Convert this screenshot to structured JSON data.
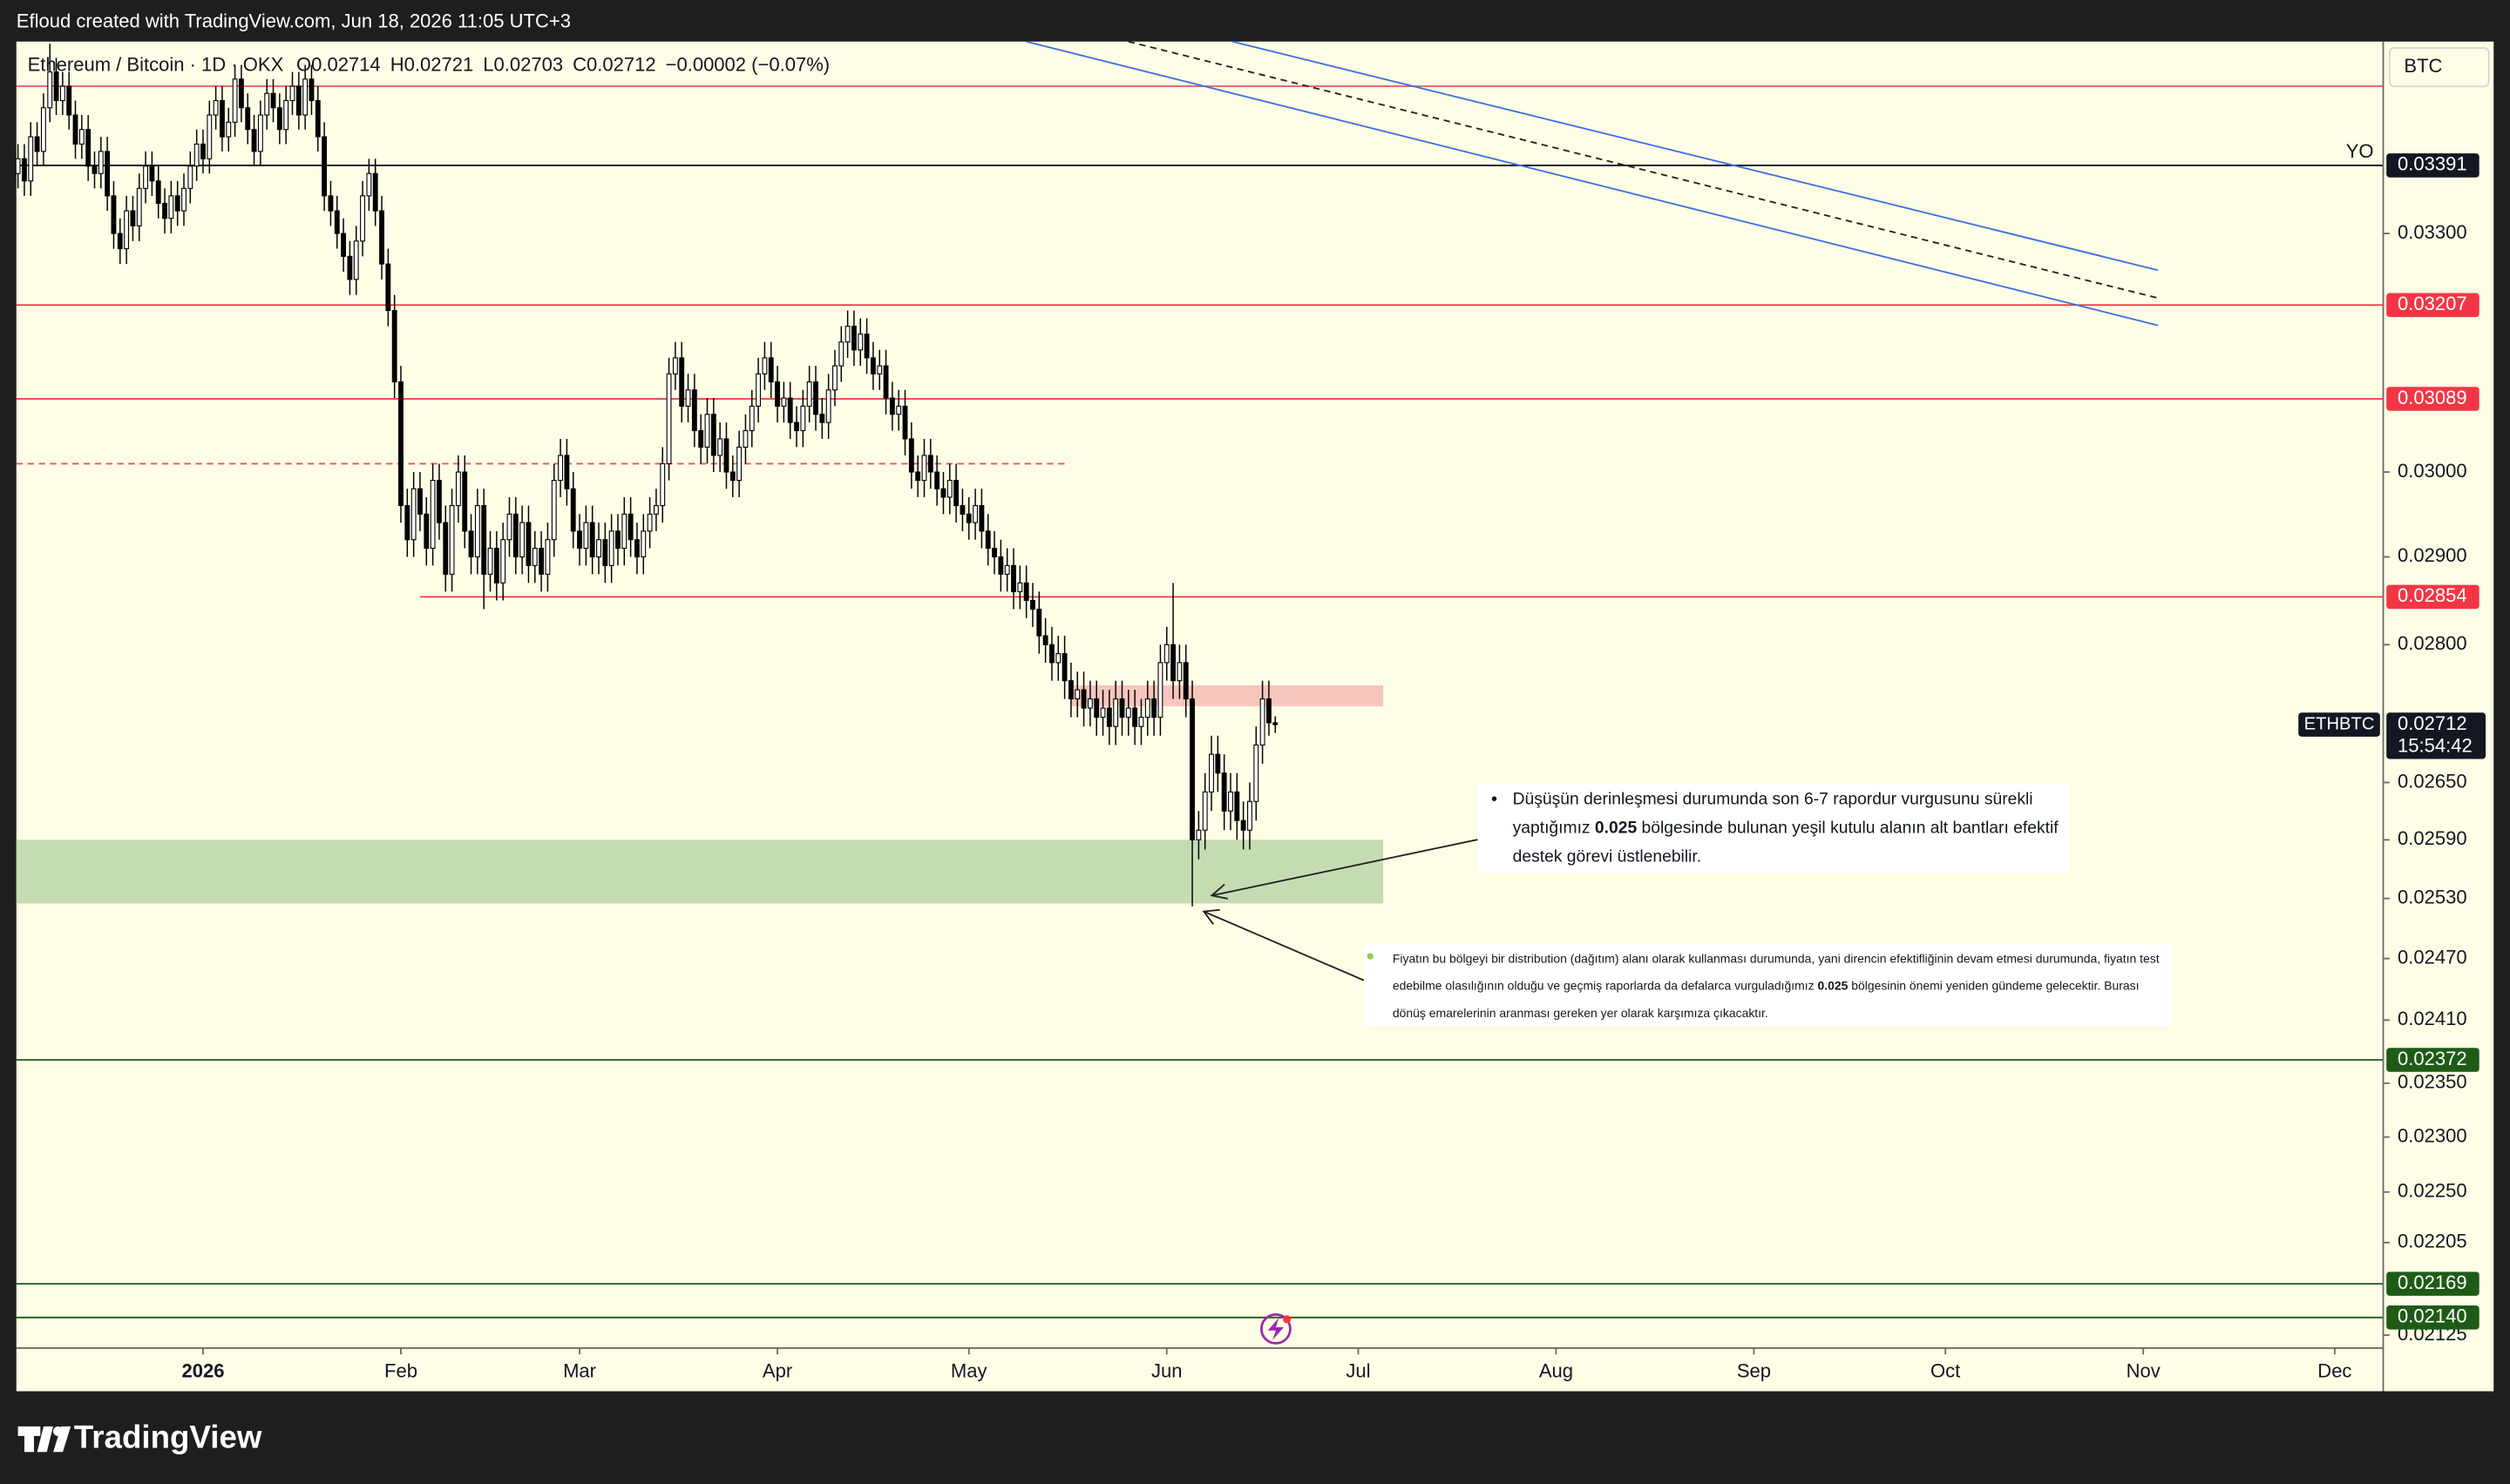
{
  "watermark": "Efloud created with TradingView.com, Jun 18, 2026 11:05 UTC+3",
  "brand": "TradingView",
  "chart_data": {
    "type": "candlestick",
    "header": {
      "symbol": "Ethereum / Bitcoin · 1D · OKX",
      "open_prefix": "O",
      "high_prefix": "H",
      "low_prefix": "L",
      "close_prefix": "C",
      "change": "−0.00002 (−0.07%)"
    },
    "currency": "BTC",
    "symbol_tag": "ETHBTC",
    "countdown": "15:54:42",
    "log_scale": true,
    "grid": false,
    "up_color": "#ffffff",
    "down_color": "#000000",
    "wick_color": "#000000",
    "xlim": [
      -0.25,
      370.6
    ],
    "xticks": [
      {
        "value": 29,
        "label": "2026"
      },
      {
        "value": 60,
        "label": "Feb"
      },
      {
        "value": 88,
        "label": "Mar"
      },
      {
        "value": 119,
        "label": "Apr"
      },
      {
        "value": 149,
        "label": "May"
      },
      {
        "value": 180,
        "label": "Jun"
      },
      {
        "value": 210,
        "label": "Jul"
      },
      {
        "value": 241,
        "label": "Aug"
      },
      {
        "value": 272,
        "label": "Sep"
      },
      {
        "value": 302,
        "label": "Oct"
      },
      {
        "value": 333,
        "label": "Nov"
      },
      {
        "value": 363,
        "label": "Dec"
      }
    ],
    "ylim": [
      0.02114,
      0.03563
    ],
    "yticks": [
      {
        "value": 0.033,
        "label": "0.03300"
      },
      {
        "value": 0.03,
        "label": "0.03000"
      },
      {
        "value": 0.029,
        "label": "0.02900"
      },
      {
        "value": 0.028,
        "label": "0.02800"
      },
      {
        "value": 0.0265,
        "label": "0.02650"
      },
      {
        "value": 0.0259,
        "label": "0.02590"
      },
      {
        "value": 0.0253,
        "label": "0.02530"
      },
      {
        "value": 0.0247,
        "label": "0.02470"
      },
      {
        "value": 0.0241,
        "label": "0.02410"
      },
      {
        "value": 0.0235,
        "label": "0.02350"
      },
      {
        "value": 0.023,
        "label": "0.02300"
      },
      {
        "value": 0.0225,
        "label": "0.02250"
      },
      0.02205,
      0.02125
    ],
    "open": [
      0.0338,
      0.034,
      0.0337,
      0.0343,
      0.0341,
      0.0347,
      0.0352,
      0.0348,
      0.035,
      0.0346,
      0.0342,
      0.0344,
      0.0339,
      0.0338,
      0.0341,
      0.0335,
      0.033,
      0.0328,
      0.0333,
      0.0331,
      0.0336,
      0.0339,
      0.0337,
      0.0334,
      0.0332,
      0.0335,
      0.0333,
      0.0336,
      0.0339,
      0.0342,
      0.034,
      0.0346,
      0.0348,
      0.0343,
      0.0345,
      0.0351,
      0.0347,
      0.0344,
      0.0341,
      0.0346,
      0.0349,
      0.0347,
      0.0344,
      0.0348,
      0.035,
      0.0346,
      0.0351,
      0.0348,
      0.0343,
      0.0335,
      0.0333,
      0.033,
      0.0327,
      0.0324,
      0.0329,
      0.0335,
      0.0338,
      0.0333,
      0.0326,
      0.032,
      0.0311,
      0.0296,
      0.0292,
      0.0298,
      0.0295,
      0.0291,
      0.0299,
      0.0294,
      0.0288,
      0.0296,
      0.03,
      0.0293,
      0.029,
      0.0296,
      0.0288,
      0.0291,
      0.0287,
      0.0292,
      0.0295,
      0.029,
      0.0294,
      0.0289,
      0.0291,
      0.0288,
      0.0292,
      0.0299,
      0.0302,
      0.0298,
      0.0293,
      0.0291,
      0.0294,
      0.029,
      0.0292,
      0.0289,
      0.0293,
      0.0291,
      0.0295,
      0.0292,
      0.029,
      0.0293,
      0.0295,
      0.0296,
      0.0301,
      0.0312,
      0.0314,
      0.0308,
      0.031,
      0.0305,
      0.0303,
      0.0307,
      0.0302,
      0.0304,
      0.03,
      0.0299,
      0.0303,
      0.0305,
      0.0308,
      0.0312,
      0.0314,
      0.0311,
      0.0308,
      0.0309,
      0.0306,
      0.0305,
      0.0308,
      0.0311,
      0.0307,
      0.0306,
      0.031,
      0.0313,
      0.0316,
      0.0318,
      0.0315,
      0.0317,
      0.0314,
      0.0312,
      0.0313,
      0.0309,
      0.0307,
      0.0308,
      0.0304,
      0.03,
      0.0299,
      0.0302,
      0.03,
      0.0298,
      0.0297,
      0.0299,
      0.0296,
      0.0295,
      0.0294,
      0.0296,
      0.0293,
      0.0291,
      0.029,
      0.0288,
      0.0289,
      0.0286,
      0.0287,
      0.0285,
      0.0284,
      0.0281,
      0.028,
      0.0278,
      0.0279,
      0.0276,
      0.0274,
      0.0275,
      0.0273,
      0.0274,
      0.0272,
      0.0273,
      0.0271,
      0.0274,
      0.0272,
      0.0273,
      0.0271,
      0.0272,
      0.0274,
      0.0272,
      0.0278,
      0.028,
      0.0276,
      0.0278,
      0.0274,
      0.0259,
      0.026,
      0.0264,
      0.0268,
      0.0266,
      0.0262,
      0.0264,
      0.0261,
      0.026,
      0.0263,
      0.0269,
      0.0274,
      0.02714
    ],
    "high": [
      0.0342,
      0.0342,
      0.0345,
      0.0345,
      0.0349,
      0.0356,
      0.0354,
      0.0352,
      0.0352,
      0.0348,
      0.0346,
      0.0346,
      0.0341,
      0.0343,
      0.0343,
      0.0337,
      0.0332,
      0.0335,
      0.0335,
      0.0338,
      0.0341,
      0.0341,
      0.0339,
      0.0336,
      0.0337,
      0.0337,
      0.0338,
      0.0341,
      0.0344,
      0.0344,
      0.0348,
      0.035,
      0.035,
      0.0347,
      0.0353,
      0.0353,
      0.0349,
      0.0346,
      0.0348,
      0.0351,
      0.0351,
      0.0349,
      0.035,
      0.0352,
      0.0352,
      0.0353,
      0.0353,
      0.035,
      0.0345,
      0.0337,
      0.0335,
      0.0332,
      0.0329,
      0.0331,
      0.0337,
      0.034,
      0.034,
      0.0335,
      0.0328,
      0.0322,
      0.0313,
      0.0298,
      0.03,
      0.03,
      0.0297,
      0.0301,
      0.0301,
      0.0296,
      0.0298,
      0.0302,
      0.0302,
      0.0295,
      0.0298,
      0.0298,
      0.0293,
      0.0293,
      0.0294,
      0.0297,
      0.0297,
      0.0296,
      0.0296,
      0.0293,
      0.0293,
      0.0294,
      0.0301,
      0.0304,
      0.0304,
      0.03,
      0.0295,
      0.0296,
      0.0296,
      0.0294,
      0.0294,
      0.0295,
      0.0295,
      0.0297,
      0.0297,
      0.0294,
      0.0295,
      0.0297,
      0.0298,
      0.0303,
      0.0314,
      0.0316,
      0.0316,
      0.0312,
      0.0312,
      0.0307,
      0.0309,
      0.0309,
      0.0306,
      0.0306,
      0.0302,
      0.0305,
      0.0307,
      0.031,
      0.0314,
      0.0316,
      0.0316,
      0.0313,
      0.0311,
      0.0311,
      0.0308,
      0.031,
      0.0313,
      0.0313,
      0.0309,
      0.0312,
      0.0315,
      0.0318,
      0.032,
      0.032,
      0.0319,
      0.0319,
      0.0316,
      0.0315,
      0.0315,
      0.0311,
      0.031,
      0.031,
      0.0306,
      0.0302,
      0.0304,
      0.0304,
      0.0302,
      0.03,
      0.0301,
      0.0301,
      0.0298,
      0.0297,
      0.0298,
      0.0298,
      0.0295,
      0.0293,
      0.0292,
      0.0291,
      0.0291,
      0.0289,
      0.0289,
      0.0287,
      0.0286,
      0.0283,
      0.0282,
      0.0281,
      0.0281,
      0.0278,
      0.0277,
      0.0277,
      0.0276,
      0.0276,
      0.0275,
      0.0275,
      0.0276,
      0.0276,
      0.0275,
      0.0275,
      0.0274,
      0.0276,
      0.0276,
      0.028,
      0.0282,
      0.0287,
      0.028,
      0.028,
      0.0276,
      0.0262,
      0.0266,
      0.027,
      0.027,
      0.0268,
      0.0266,
      0.0266,
      0.0263,
      0.0265,
      0.0271,
      0.0276,
      0.0276,
      0.02721
    ],
    "low": [
      0.0336,
      0.0335,
      0.0335,
      0.0339,
      0.0339,
      0.0345,
      0.0346,
      0.0346,
      0.0344,
      0.034,
      0.034,
      0.0337,
      0.0336,
      0.0336,
      0.0333,
      0.0328,
      0.0326,
      0.0326,
      0.0329,
      0.0329,
      0.0334,
      0.0335,
      0.0332,
      0.033,
      0.033,
      0.0331,
      0.0331,
      0.0334,
      0.0337,
      0.0338,
      0.0338,
      0.0344,
      0.0341,
      0.0341,
      0.0343,
      0.0345,
      0.0342,
      0.0339,
      0.0339,
      0.0344,
      0.0345,
      0.0342,
      0.0342,
      0.0346,
      0.0344,
      0.0344,
      0.0346,
      0.0341,
      0.0333,
      0.0331,
      0.0328,
      0.0325,
      0.0322,
      0.0322,
      0.0327,
      0.0333,
      0.0331,
      0.0324,
      0.0318,
      0.0309,
      0.0294,
      0.029,
      0.029,
      0.0293,
      0.0289,
      0.0289,
      0.0292,
      0.0286,
      0.0286,
      0.0294,
      0.0291,
      0.0288,
      0.0288,
      0.0284,
      0.0286,
      0.0285,
      0.0285,
      0.029,
      0.0288,
      0.0288,
      0.0287,
      0.0287,
      0.0286,
      0.0286,
      0.029,
      0.0297,
      0.0296,
      0.0291,
      0.0289,
      0.0289,
      0.0288,
      0.0288,
      0.0287,
      0.0287,
      0.0289,
      0.0289,
      0.029,
      0.0288,
      0.0288,
      0.0291,
      0.0293,
      0.0294,
      0.0299,
      0.031,
      0.0306,
      0.0306,
      0.0303,
      0.0301,
      0.0301,
      0.03,
      0.03,
      0.0298,
      0.0297,
      0.0297,
      0.0301,
      0.0303,
      0.0306,
      0.031,
      0.0309,
      0.0306,
      0.0306,
      0.0304,
      0.0303,
      0.0303,
      0.0306,
      0.0305,
      0.0304,
      0.0304,
      0.0308,
      0.0311,
      0.0314,
      0.0313,
      0.0313,
      0.0312,
      0.031,
      0.031,
      0.0307,
      0.0305,
      0.0305,
      0.0302,
      0.0298,
      0.0297,
      0.0297,
      0.0298,
      0.0296,
      0.0295,
      0.0295,
      0.0294,
      0.0293,
      0.0292,
      0.0292,
      0.0291,
      0.0289,
      0.0288,
      0.0286,
      0.0286,
      0.0284,
      0.0284,
      0.0283,
      0.0282,
      0.0279,
      0.0278,
      0.0276,
      0.0276,
      0.0274,
      0.0272,
      0.0272,
      0.0271,
      0.0271,
      0.027,
      0.027,
      0.0269,
      0.0269,
      0.027,
      0.027,
      0.0269,
      0.0269,
      0.027,
      0.027,
      0.027,
      0.0276,
      0.0274,
      0.0274,
      0.0272,
      0.02522,
      0.0257,
      0.0258,
      0.0262,
      0.0264,
      0.026,
      0.026,
      0.0259,
      0.0258,
      0.0258,
      0.0261,
      0.0267,
      0.027,
      0.02703
    ],
    "close": [
      0.034,
      0.0337,
      0.0343,
      0.0341,
      0.0347,
      0.0352,
      0.0348,
      0.035,
      0.0346,
      0.0342,
      0.0344,
      0.0339,
      0.0338,
      0.0341,
      0.0335,
      0.033,
      0.0328,
      0.0333,
      0.0331,
      0.0336,
      0.0339,
      0.0337,
      0.0334,
      0.0332,
      0.0335,
      0.0333,
      0.0336,
      0.0339,
      0.0342,
      0.034,
      0.0346,
      0.0348,
      0.0343,
      0.0345,
      0.0351,
      0.0347,
      0.0344,
      0.0341,
      0.0346,
      0.0349,
      0.0347,
      0.0344,
      0.0348,
      0.035,
      0.0346,
      0.0351,
      0.0348,
      0.0343,
      0.0335,
      0.0333,
      0.033,
      0.0327,
      0.0324,
      0.0329,
      0.0335,
      0.0338,
      0.0333,
      0.0326,
      0.032,
      0.0311,
      0.0296,
      0.0292,
      0.0298,
      0.0295,
      0.0291,
      0.0299,
      0.0294,
      0.0288,
      0.0296,
      0.03,
      0.0293,
      0.029,
      0.0296,
      0.0288,
      0.0291,
      0.0287,
      0.0292,
      0.0295,
      0.029,
      0.0294,
      0.0289,
      0.0291,
      0.0288,
      0.0292,
      0.0299,
      0.0302,
      0.0298,
      0.0293,
      0.0291,
      0.0294,
      0.029,
      0.0292,
      0.0289,
      0.0293,
      0.0291,
      0.0295,
      0.0292,
      0.029,
      0.0293,
      0.0295,
      0.0296,
      0.0301,
      0.0312,
      0.0314,
      0.0308,
      0.031,
      0.0305,
      0.0303,
      0.0307,
      0.0302,
      0.0304,
      0.03,
      0.0299,
      0.0303,
      0.0305,
      0.0308,
      0.0312,
      0.0314,
      0.0311,
      0.0308,
      0.0309,
      0.0306,
      0.0305,
      0.0308,
      0.0311,
      0.0307,
      0.0306,
      0.031,
      0.0313,
      0.0316,
      0.0318,
      0.0315,
      0.0317,
      0.0314,
      0.0312,
      0.0313,
      0.0309,
      0.0307,
      0.0308,
      0.0304,
      0.03,
      0.0299,
      0.0302,
      0.03,
      0.0298,
      0.0297,
      0.0299,
      0.0296,
      0.0295,
      0.0294,
      0.0296,
      0.0293,
      0.0291,
      0.029,
      0.0288,
      0.0289,
      0.0286,
      0.0287,
      0.0285,
      0.0284,
      0.0281,
      0.028,
      0.0278,
      0.0279,
      0.0276,
      0.0274,
      0.0275,
      0.0273,
      0.0274,
      0.0272,
      0.0273,
      0.0271,
      0.0274,
      0.0272,
      0.0273,
      0.0271,
      0.0272,
      0.0274,
      0.0272,
      0.0278,
      0.028,
      0.0276,
      0.0278,
      0.0274,
      0.0259,
      0.026,
      0.0264,
      0.0268,
      0.0266,
      0.0262,
      0.0264,
      0.0261,
      0.026,
      0.0263,
      0.0269,
      0.0274,
      0.02714,
      0.02712
    ],
    "levels": [
      {
        "value": 0.035,
        "color": "#e05a60",
        "dashed": false,
        "badge": false
      },
      {
        "value": 0.03391,
        "color": "#131722",
        "dashed": false,
        "badge": true,
        "label": "YO"
      },
      {
        "value": 0.03207,
        "color": "#f23645",
        "dashed": false,
        "badge": true
      },
      {
        "value": 0.03089,
        "color": "#f23645",
        "dashed": false,
        "badge": true
      },
      {
        "value": 0.0301,
        "color": "#e05a60",
        "dashed": true,
        "badge": false,
        "to": 164
      },
      {
        "value": 0.02854,
        "color": "#f23645",
        "dashed": false,
        "badge": true,
        "from": 63
      },
      {
        "value": 0.02372,
        "color": "#1e5b17",
        "dashed": false,
        "badge": true
      },
      {
        "value": 0.02169,
        "color": "#1e5b17",
        "dashed": false,
        "badge": true
      },
      {
        "value": 0.0214,
        "value_label": "0.02140",
        "color": "#1e5b17",
        "dashed": false,
        "badge": true
      }
    ],
    "zones": [
      {
        "x": [
          165,
          213.9
        ],
        "y": [
          0.02732,
          0.02755
        ],
        "color": "#f7c6bd"
      },
      {
        "x": [
          -0.25,
          213.9
        ],
        "y": [
          0.02525,
          0.0259
        ],
        "color": "#c5dcb3"
      }
    ],
    "trendlines": [
      {
        "x": [
          190.3,
          335.3
        ],
        "y": [
          0.03563,
          0.03252
        ],
        "color": "#3d6fe0",
        "dashed": false
      },
      {
        "x": [
          174,
          335.3
        ],
        "y": [
          0.03563,
          0.03216
        ],
        "color": "#222222",
        "dashed": true
      },
      {
        "x": [
          158,
          335.3
        ],
        "y": [
          0.03563,
          0.03181
        ],
        "color": "#3d6fe0",
        "dashed": false
      }
    ],
    "notes": [
      {
        "before": "Düşüşün derinleşmesi durumunda son 6-7 rapordur vurgusunu sürekli yaptığımız ",
        "bold": "0.025",
        "after": " bölgesinde bulunan yeşil kutulu alanın alt bantları efektif destek görevi üstlenebilir."
      },
      {
        "before": "Fiyatın bu bölgeyi bir distribution (dağıtım) alanı olarak kullanması durumunda, yani direncin efektifliğinin devam etmesi durumunda, fiyatın test edebilme olasılığının olduğu ve geçmiş raporlarda da defalarca vurguladığımız ",
        "bold": "0.025",
        "after": " bölgesinin önemi yeniden gündeme gelecektir. Burası dönüş emarelerinin aranması gereken yer olarak karşımıza çıkacaktır."
      }
    ]
  }
}
